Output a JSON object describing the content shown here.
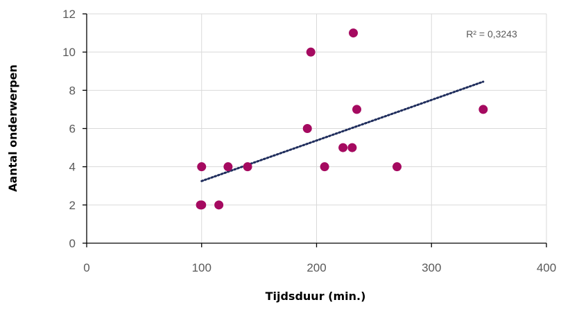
{
  "chart_data": {
    "type": "scatter",
    "xlabel": "Tijdsduur (min.)",
    "ylabel": "Aantal onderwerpen",
    "xlim": [
      0,
      400
    ],
    "ylim": [
      0,
      12
    ],
    "x_ticks": [
      0,
      100,
      200,
      300,
      400
    ],
    "y_ticks": [
      0,
      2,
      4,
      6,
      8,
      10,
      12
    ],
    "x_tick_labels": [
      "0",
      "100",
      "200",
      "300",
      "400"
    ],
    "y_tick_labels": [
      "0",
      "2",
      "4",
      "6",
      "8",
      "10",
      "12"
    ],
    "grid": true,
    "series": [
      {
        "points": [
          {
            "x": 99,
            "y": 2
          },
          {
            "x": 100,
            "y": 2
          },
          {
            "x": 100,
            "y": 4
          },
          {
            "x": 115,
            "y": 2
          },
          {
            "x": 123,
            "y": 4
          },
          {
            "x": 140,
            "y": 4
          },
          {
            "x": 192,
            "y": 6
          },
          {
            "x": 195,
            "y": 10
          },
          {
            "x": 207,
            "y": 4
          },
          {
            "x": 223,
            "y": 5
          },
          {
            "x": 231,
            "y": 5
          },
          {
            "x": 232,
            "y": 11
          },
          {
            "x": 235,
            "y": 7
          },
          {
            "x": 270,
            "y": 4
          },
          {
            "x": 345,
            "y": 7
          }
        ]
      }
    ],
    "trendline": {
      "type": "linear",
      "x_start": 100,
      "y_start": 3.25,
      "x_end": 345,
      "y_end": 8.45,
      "label": "R² = 0,3243"
    },
    "colors": {
      "marker": "#a50a60",
      "trendline": "#1f2d5c",
      "grid": "#d9d9d9",
      "axis": "#000000"
    }
  }
}
